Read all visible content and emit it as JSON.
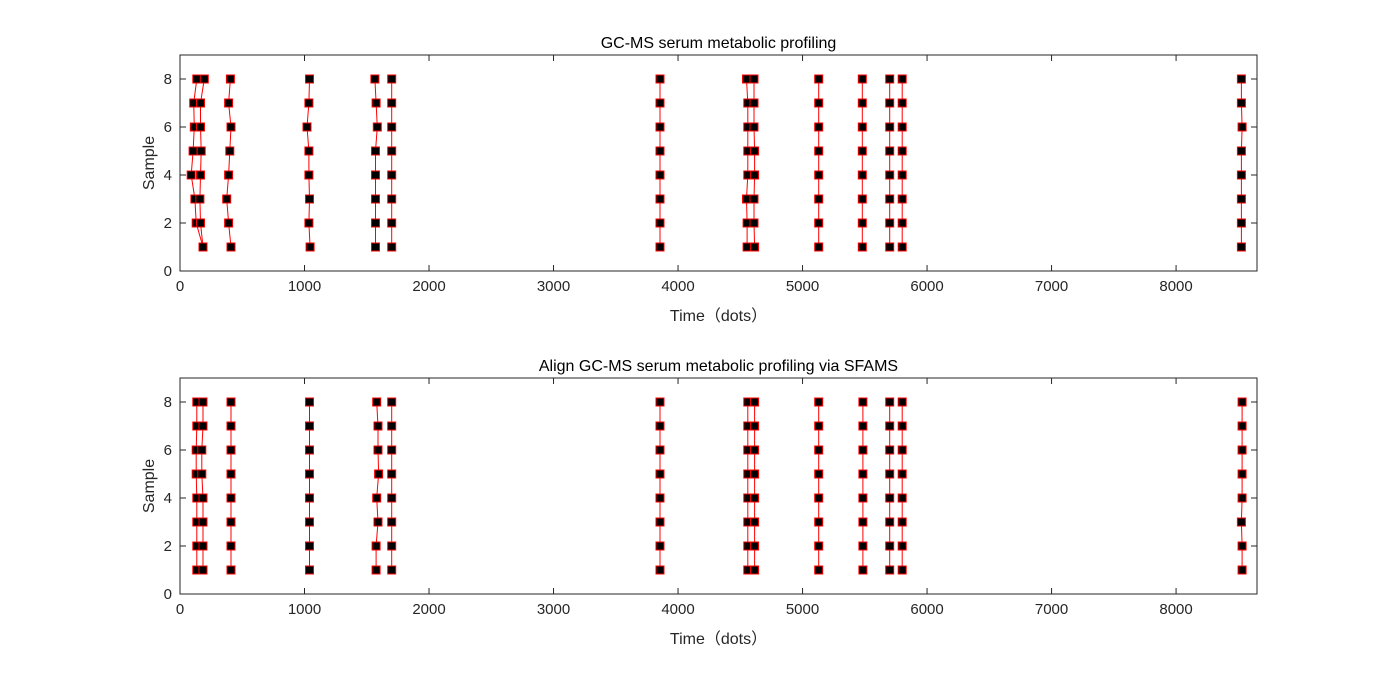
{
  "chart_data": [
    {
      "type": "line",
      "title": "GC-MS serum metabolic profiling",
      "xlabel": "Time（dots）",
      "ylabel": "Sample",
      "xlim": [
        0,
        8650
      ],
      "ylim": [
        0,
        9
      ],
      "xticks": [
        0,
        1000,
        2000,
        3000,
        4000,
        5000,
        6000,
        7000,
        8000
      ],
      "yticks": [
        0,
        2,
        4,
        6,
        8
      ],
      "grid": false,
      "line_color": "#ff0000",
      "marker_face": "#000000",
      "marker_edge": "#ff0000",
      "series": [
        {
          "x": [
            185,
            130,
            120,
            90,
            105,
            115,
            110,
            135
          ],
          "y": [
            1,
            2,
            3,
            4,
            5,
            6,
            7,
            8
          ]
        },
        {
          "x": [
            185,
            165,
            160,
            165,
            170,
            165,
            165,
            195
          ],
          "y": [
            1,
            2,
            3,
            4,
            5,
            6,
            7,
            8
          ]
        },
        {
          "x": [
            410,
            390,
            375,
            390,
            400,
            410,
            390,
            405
          ],
          "y": [
            1,
            2,
            3,
            4,
            5,
            6,
            7,
            8
          ]
        },
        {
          "x": [
            1045,
            1035,
            1040,
            1035,
            1035,
            1020,
            1035,
            1040
          ],
          "y": [
            1,
            2,
            3,
            4,
            5,
            6,
            7,
            8
          ]
        },
        {
          "x": [
            1570,
            1570,
            1570,
            1570,
            1570,
            1585,
            1575,
            1565
          ],
          "y": [
            1,
            2,
            3,
            4,
            5,
            6,
            7,
            8
          ]
        },
        {
          "x": [
            1700,
            1700,
            1700,
            1700,
            1700,
            1700,
            1700,
            1700
          ],
          "y": [
            1,
            2,
            3,
            4,
            5,
            6,
            7,
            8
          ]
        },
        {
          "x": [
            3855,
            3855,
            3855,
            3855,
            3855,
            3855,
            3855,
            3855
          ],
          "y": [
            1,
            2,
            3,
            4,
            5,
            6,
            7,
            8
          ]
        },
        {
          "x": [
            4555,
            4555,
            4550,
            4560,
            4560,
            4560,
            4560,
            4550
          ],
          "y": [
            1,
            2,
            3,
            4,
            5,
            6,
            7,
            8
          ]
        },
        {
          "x": [
            4615,
            4610,
            4610,
            4615,
            4615,
            4610,
            4610,
            4610
          ],
          "y": [
            1,
            2,
            3,
            4,
            5,
            6,
            7,
            8
          ]
        },
        {
          "x": [
            5130,
            5130,
            5130,
            5130,
            5130,
            5130,
            5130,
            5130
          ],
          "y": [
            1,
            2,
            3,
            4,
            5,
            6,
            7,
            8
          ]
        },
        {
          "x": [
            5480,
            5480,
            5480,
            5480,
            5480,
            5480,
            5480,
            5480
          ],
          "y": [
            1,
            2,
            3,
            4,
            5,
            6,
            7,
            8
          ]
        },
        {
          "x": [
            5700,
            5700,
            5700,
            5700,
            5700,
            5700,
            5700,
            5700
          ],
          "y": [
            1,
            2,
            3,
            4,
            5,
            6,
            7,
            8
          ]
        },
        {
          "x": [
            5800,
            5800,
            5800,
            5800,
            5800,
            5800,
            5800,
            5800
          ],
          "y": [
            1,
            2,
            3,
            4,
            5,
            6,
            7,
            8
          ]
        },
        {
          "x": [
            8525,
            8525,
            8525,
            8525,
            8525,
            8530,
            8525,
            8525
          ],
          "y": [
            1,
            2,
            3,
            4,
            5,
            6,
            7,
            8
          ]
        }
      ]
    },
    {
      "type": "line",
      "title": "Align GC-MS serum metabolic profiling via SFAMS",
      "xlabel": "Time（dots）",
      "ylabel": "Sample",
      "xlim": [
        0,
        8650
      ],
      "ylim": [
        0,
        9
      ],
      "xticks": [
        0,
        1000,
        2000,
        3000,
        4000,
        5000,
        6000,
        7000,
        8000
      ],
      "yticks": [
        0,
        2,
        4,
        6,
        8
      ],
      "grid": false,
      "line_color": "#ff0000",
      "marker_face": "#000000",
      "marker_edge": "#ff0000",
      "series": [
        {
          "x": [
            135,
            135,
            135,
            135,
            130,
            130,
            135,
            135
          ],
          "y": [
            1,
            2,
            3,
            4,
            5,
            6,
            7,
            8
          ]
        },
        {
          "x": [
            185,
            185,
            185,
            185,
            175,
            175,
            185,
            185
          ],
          "y": [
            1,
            2,
            3,
            4,
            5,
            6,
            7,
            8
          ]
        },
        {
          "x": [
            410,
            410,
            410,
            410,
            410,
            410,
            410,
            410
          ],
          "y": [
            1,
            2,
            3,
            4,
            5,
            6,
            7,
            8
          ]
        },
        {
          "x": [
            1040,
            1040,
            1040,
            1040,
            1040,
            1040,
            1040,
            1040
          ],
          "y": [
            1,
            2,
            3,
            4,
            5,
            6,
            7,
            8
          ]
        },
        {
          "x": [
            1575,
            1575,
            1590,
            1580,
            1595,
            1590,
            1590,
            1580
          ],
          "y": [
            1,
            2,
            3,
            4,
            5,
            6,
            7,
            8
          ]
        },
        {
          "x": [
            1700,
            1700,
            1700,
            1700,
            1700,
            1700,
            1700,
            1700
          ],
          "y": [
            1,
            2,
            3,
            4,
            5,
            6,
            7,
            8
          ]
        },
        {
          "x": [
            3855,
            3855,
            3855,
            3855,
            3855,
            3855,
            3855,
            3855
          ],
          "y": [
            1,
            2,
            3,
            4,
            5,
            6,
            7,
            8
          ]
        },
        {
          "x": [
            4560,
            4560,
            4560,
            4560,
            4560,
            4560,
            4560,
            4560
          ],
          "y": [
            1,
            2,
            3,
            4,
            5,
            6,
            7,
            8
          ]
        },
        {
          "x": [
            4615,
            4615,
            4615,
            4615,
            4615,
            4615,
            4615,
            4615
          ],
          "y": [
            1,
            2,
            3,
            4,
            5,
            6,
            7,
            8
          ]
        },
        {
          "x": [
            5130,
            5130,
            5130,
            5130,
            5130,
            5130,
            5130,
            5130
          ],
          "y": [
            1,
            2,
            3,
            4,
            5,
            6,
            7,
            8
          ]
        },
        {
          "x": [
            5485,
            5485,
            5485,
            5485,
            5485,
            5485,
            5485,
            5485
          ],
          "y": [
            1,
            2,
            3,
            4,
            5,
            6,
            7,
            8
          ]
        },
        {
          "x": [
            5700,
            5700,
            5700,
            5700,
            5700,
            5700,
            5700,
            5700
          ],
          "y": [
            1,
            2,
            3,
            4,
            5,
            6,
            7,
            8
          ]
        },
        {
          "x": [
            5800,
            5800,
            5800,
            5800,
            5800,
            5800,
            5800,
            5800
          ],
          "y": [
            1,
            2,
            3,
            4,
            5,
            6,
            7,
            8
          ]
        },
        {
          "x": [
            8530,
            8530,
            8525,
            8530,
            8530,
            8530,
            8530,
            8530
          ],
          "y": [
            1,
            2,
            3,
            4,
            5,
            6,
            7,
            8
          ]
        }
      ]
    }
  ]
}
